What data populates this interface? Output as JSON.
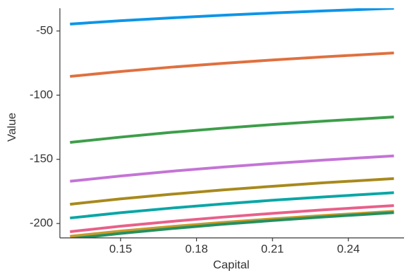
{
  "chart_data": {
    "type": "line",
    "x_label": "Capital",
    "y_label": "Value",
    "x": [
      0.13,
      0.15,
      0.17,
      0.19,
      0.21,
      0.23,
      0.258
    ],
    "series": [
      {
        "color": "#0d95e8",
        "values": [
          -44.6,
          -42.0,
          -39.8,
          -37.8,
          -36.0,
          -34.4,
          -32.3
        ]
      },
      {
        "color": "#e0703f",
        "values": [
          -85.4,
          -81.6,
          -78.2,
          -75.3,
          -72.6,
          -70.2,
          -67.1
        ]
      },
      {
        "color": "#3d9e4a",
        "values": [
          -136.8,
          -132.7,
          -129.0,
          -125.8,
          -122.9,
          -120.3,
          -117.0
        ]
      },
      {
        "color": "#c474d6",
        "values": [
          -167.1,
          -163.0,
          -159.3,
          -156.1,
          -153.2,
          -150.6,
          -147.3
        ]
      },
      {
        "color": "#a8891c",
        "values": [
          -185.0,
          -180.8,
          -177.2,
          -173.9,
          -171.0,
          -168.3,
          -165.0
        ]
      },
      {
        "color": "#0aa6a6",
        "values": [
          -195.7,
          -191.6,
          -188.0,
          -184.8,
          -181.9,
          -179.3,
          -176.0
        ]
      },
      {
        "color": "#e8608a",
        "values": [
          -206.4,
          -202.1,
          -198.4,
          -195.1,
          -192.1,
          -189.4,
          -186.0
        ]
      },
      {
        "color": "#c79a2a",
        "values": [
          -210.0,
          -205.9,
          -202.4,
          -199.2,
          -196.4,
          -193.8,
          -190.5
        ]
      },
      {
        "color": "#249060",
        "values": [
          -212.0,
          -207.7,
          -204.0,
          -200.6,
          -197.7,
          -194.9,
          -191.5
        ]
      }
    ],
    "xlim": [
      0.126,
      0.262
    ],
    "xticks": [
      0.15,
      0.18,
      0.21,
      0.24
    ],
    "ylim": [
      -211.2,
      -32.3
    ],
    "yticks": [
      -50,
      -100,
      -150,
      -200
    ]
  }
}
